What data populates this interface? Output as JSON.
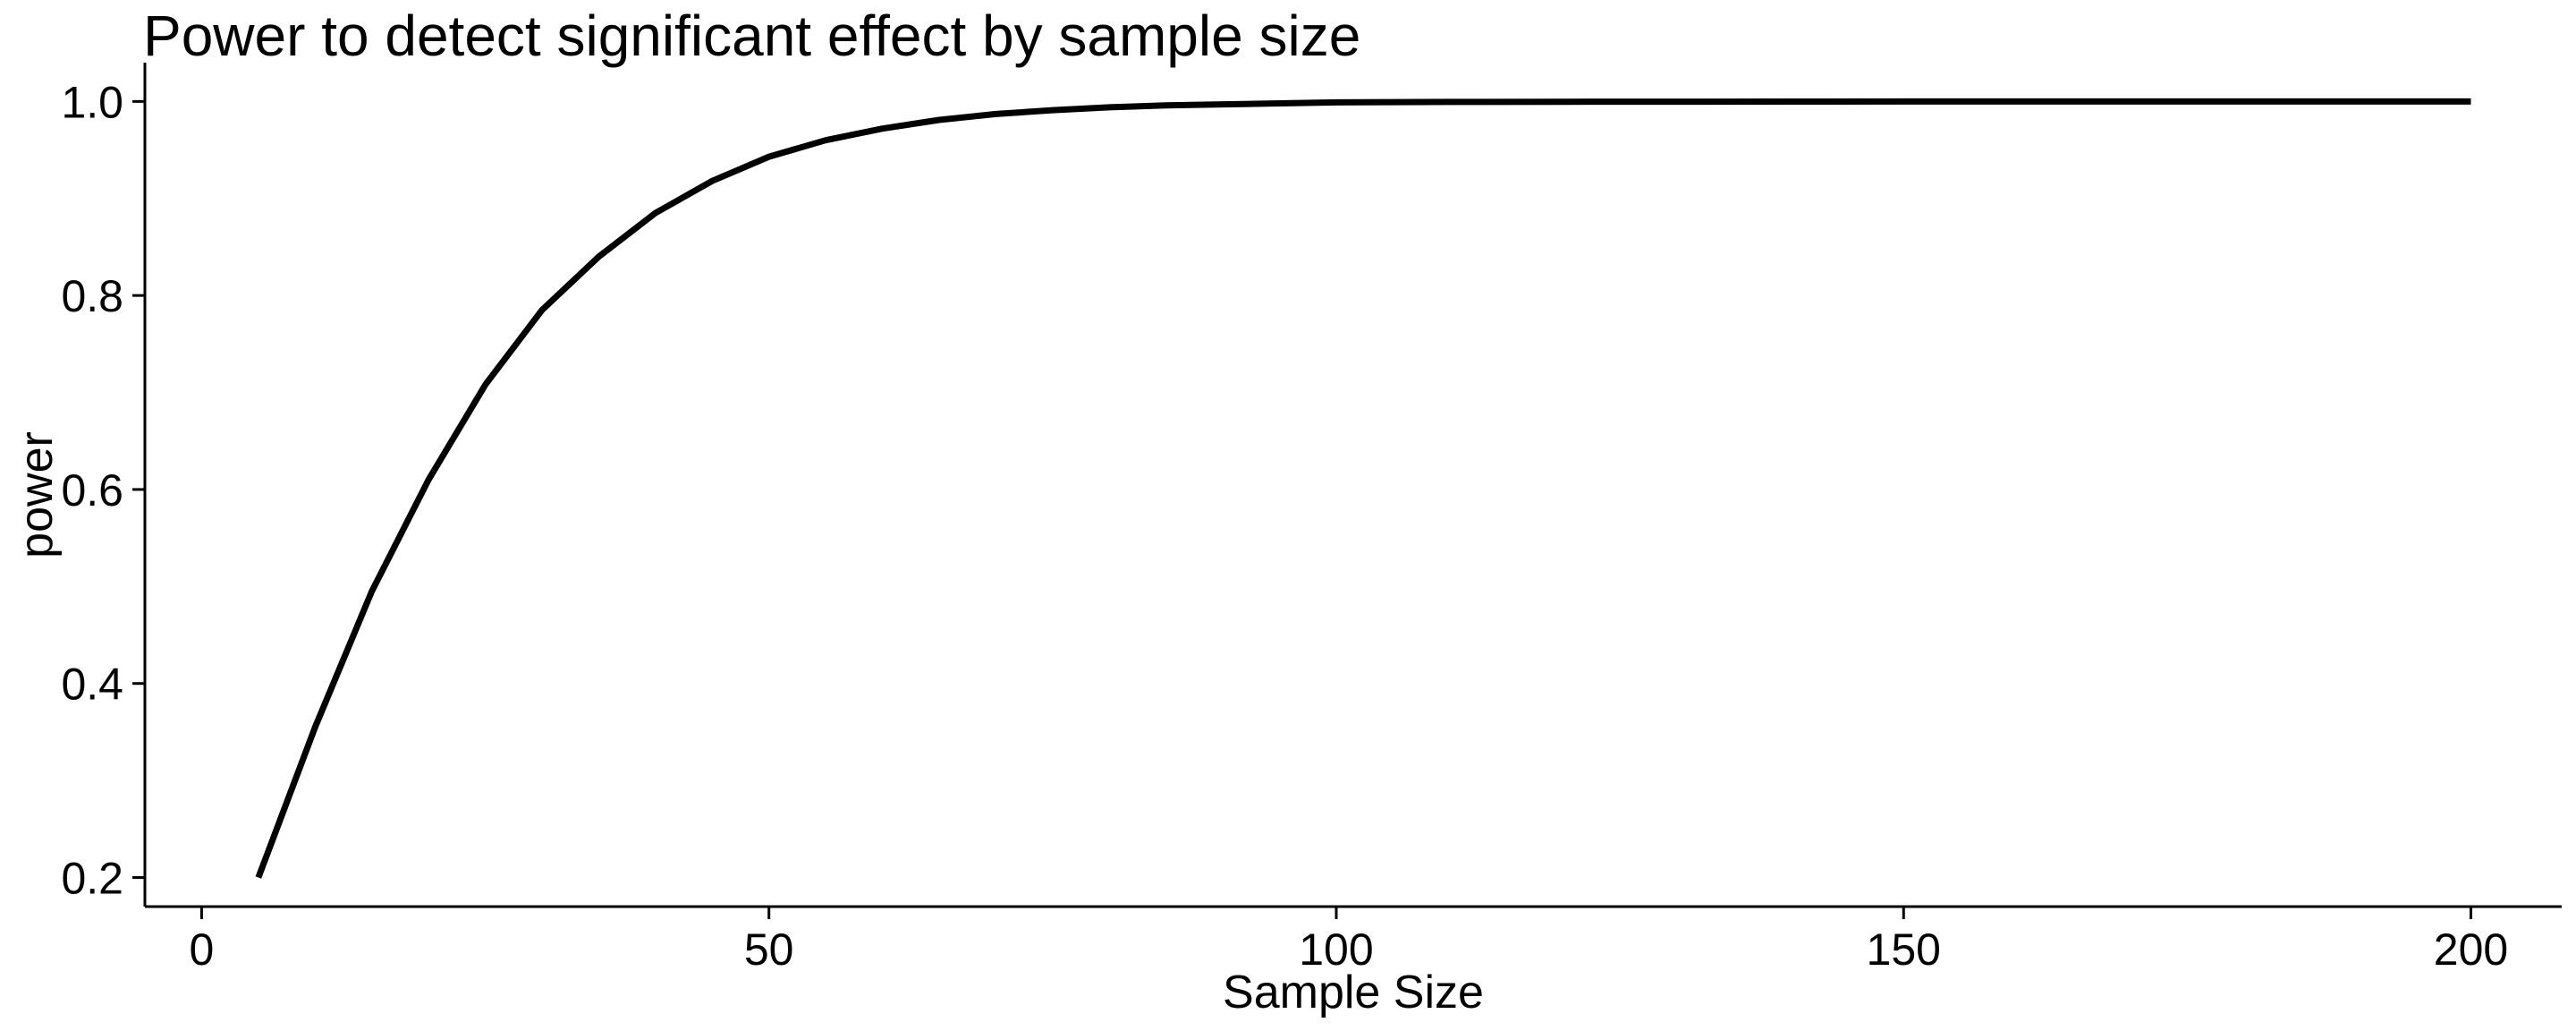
{
  "chart_data": {
    "type": "line",
    "title": "Power to detect significant effect by sample size",
    "xlabel": "Sample Size",
    "ylabel": "power",
    "xlim": [
      -5,
      208
    ],
    "ylim": [
      0.17,
      1.04
    ],
    "xticks": [
      0,
      50,
      100,
      150,
      200
    ],
    "xtick_labels": [
      "0",
      "50",
      "100",
      "150",
      "200"
    ],
    "yticks": [
      0.2,
      0.4,
      0.6,
      0.8,
      1.0
    ],
    "ytick_labels": [
      "0.2",
      "0.4",
      "0.6",
      "0.8",
      "1.0"
    ],
    "grid": false,
    "line_color": "#000000",
    "series": [
      {
        "x": [
          5,
          10,
          15,
          20,
          25,
          30,
          35,
          40,
          45,
          50,
          55,
          60,
          65,
          70,
          75,
          80,
          85,
          90,
          95,
          100,
          110,
          120,
          130,
          140,
          150,
          160,
          170,
          180,
          190,
          200
        ],
        "y": [
          0.2,
          0.355,
          0.495,
          0.61,
          0.708,
          0.785,
          0.84,
          0.885,
          0.918,
          0.943,
          0.96,
          0.972,
          0.981,
          0.987,
          0.991,
          0.994,
          0.996,
          0.997,
          0.998,
          0.999,
          0.9995,
          0.9997,
          0.9998,
          0.9999,
          1.0,
          1.0,
          1.0,
          1.0,
          1.0,
          1.0
        ]
      }
    ]
  }
}
